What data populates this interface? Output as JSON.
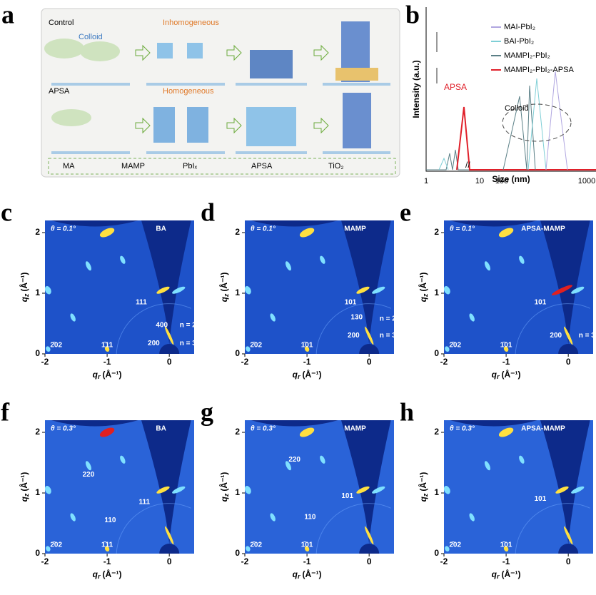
{
  "panel_a": {
    "label": "a",
    "control": "Control",
    "colloid": "Colloid",
    "inhomogeneous": "Inhomogeneous",
    "apsa": "APSA",
    "homogeneous": "Homogeneous",
    "legend": [
      "MA",
      "MAMP",
      "PbIₓ",
      "APSA",
      "TiO₂"
    ]
  },
  "panel_b": {
    "label": "b",
    "legend": [
      "MAI-PbI₂",
      "BAI-PbI₂",
      "MAMPI₂-PbI₂",
      "MAMPI₂-PbI₂-APSA"
    ],
    "molecule": "APSA",
    "colloid": "Colloid",
    "x_label": "Size (nm)",
    "y_label": "Intensity (a.u.)",
    "x_ticks": [
      "1",
      "10",
      "100",
      "1000"
    ]
  },
  "axes": {
    "qr_symbol": "q",
    "qr_sub": "r",
    "qz_symbol": "q",
    "qz_sub": "z",
    "unit": "(Å⁻¹)",
    "qr_ticks": [
      -2,
      -1,
      0
    ],
    "qz_ticks": [
      0,
      1,
      2
    ]
  },
  "giwaxs": [
    {
      "label": "c",
      "theta": "θ = 0.1°",
      "sample": "BA",
      "peaks": [
        "111",
        "400",
        "n = 2",
        "200",
        "n = 3",
        "2̄02",
        "1̄11"
      ]
    },
    {
      "label": "d",
      "theta": "θ = 0.1°",
      "sample": "MAMP",
      "peaks": [
        "101",
        "130",
        "n = 2",
        "200",
        "n = 3",
        "2̄02",
        "1̄01"
      ]
    },
    {
      "label": "e",
      "theta": "θ = 0.1°",
      "sample": "APSA-MAMP",
      "peaks": [
        "101",
        "200",
        "n = 3",
        "2̄02",
        "1̄01"
      ]
    },
    {
      "label": "f",
      "theta": "θ = 0.3°",
      "sample": "BA",
      "peaks": [
        "220",
        "111",
        "110",
        "2̄02",
        "1̄11"
      ]
    },
    {
      "label": "g",
      "theta": "θ = 0.3°",
      "sample": "MAMP",
      "peaks": [
        "220",
        "101",
        "110",
        "2̄02",
        "1̄01"
      ]
    },
    {
      "label": "h",
      "theta": "θ = 0.3°",
      "sample": "APSA-MAMP",
      "peaks": [
        "101",
        "2̄02",
        "1̄01"
      ]
    }
  ]
}
